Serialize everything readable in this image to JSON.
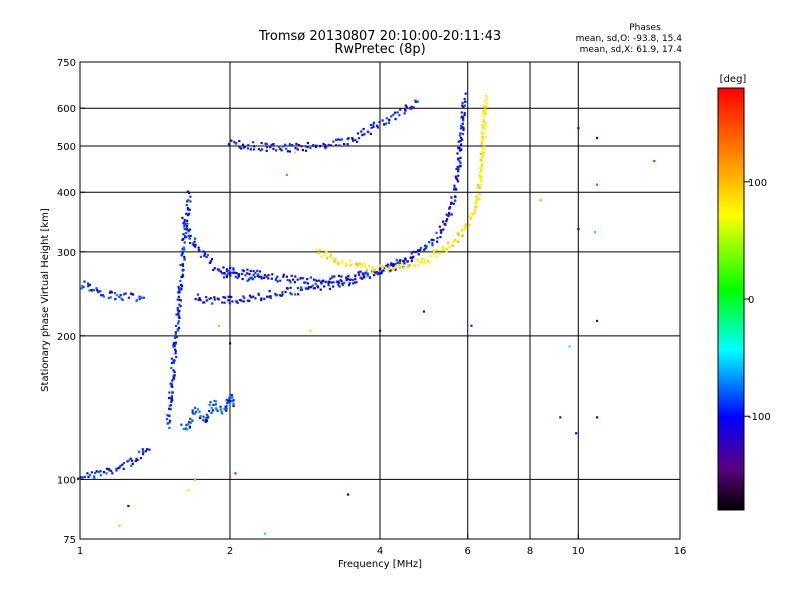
{
  "header": {
    "title": "Tromsø 20130807 20:10:00-20:11:43",
    "subtitle": "RwPretec (8p)"
  },
  "stats": {
    "heading": "Phases",
    "line_o": "mean, sd,O: -93.8, 15.4",
    "line_x": "mean, sd,X: 61.9, 17.4"
  },
  "colorbar": {
    "unit": "[deg]",
    "ticks": [
      {
        "value": 100,
        "label": "100"
      },
      {
        "value": 0,
        "label": "0"
      },
      {
        "value": -100,
        "label": "-100"
      }
    ],
    "range": [
      -180,
      180
    ]
  },
  "chart_data": {
    "type": "scatter",
    "xlabel": "Frequency [MHz]",
    "ylabel": "Stationary phase Virtual Height [km]",
    "x_scale": "log",
    "y_scale": "log",
    "xlim": [
      1,
      16
    ],
    "ylim": [
      75,
      750
    ],
    "grid": true,
    "x_ticks": [
      1,
      2,
      4,
      6,
      8,
      10,
      16
    ],
    "y_ticks": [
      75,
      100,
      200,
      300,
      400,
      500,
      600,
      750
    ],
    "x_grid": [
      2,
      4,
      6,
      8,
      10
    ],
    "y_grid": [
      100,
      200,
      300,
      400,
      500,
      600
    ],
    "colormap": "rainbow",
    "segments": [
      {
        "id": "E-low",
        "phase": -95,
        "points": [
          [
            1.0,
            102
          ],
          [
            1.05,
            102
          ],
          [
            1.1,
            103
          ],
          [
            1.15,
            104
          ],
          [
            1.2,
            106
          ],
          [
            1.25,
            108
          ],
          [
            1.3,
            111
          ],
          [
            1.35,
            115
          ],
          [
            1.38,
            118
          ]
        ]
      },
      {
        "id": "E-upper",
        "phase": -90,
        "points": [
          [
            1.0,
            255
          ],
          [
            1.03,
            258
          ],
          [
            1.06,
            251
          ],
          [
            1.1,
            246
          ],
          [
            1.15,
            243
          ],
          [
            1.2,
            243
          ],
          [
            1.25,
            241
          ],
          [
            1.3,
            240
          ],
          [
            1.35,
            242
          ]
        ]
      },
      {
        "id": "F-rise",
        "phase": -95,
        "points": [
          [
            1.5,
            130
          ],
          [
            1.52,
            150
          ],
          [
            1.54,
            175
          ],
          [
            1.56,
            200
          ],
          [
            1.58,
            235
          ],
          [
            1.6,
            275
          ],
          [
            1.62,
            320
          ],
          [
            1.64,
            360
          ],
          [
            1.66,
            400
          ]
        ]
      },
      {
        "id": "F-cluster",
        "phase": -98,
        "points": [
          [
            1.6,
            350
          ],
          [
            1.65,
            330
          ],
          [
            1.7,
            310
          ],
          [
            1.75,
            300
          ],
          [
            1.8,
            290
          ],
          [
            1.85,
            280
          ],
          [
            1.9,
            275
          ],
          [
            1.95,
            270
          ],
          [
            2.0,
            268
          ],
          [
            2.1,
            265
          ],
          [
            2.2,
            265
          ],
          [
            2.3,
            262
          ]
        ]
      },
      {
        "id": "F-O-trace",
        "phase": -100,
        "points": [
          [
            1.7,
            240
          ],
          [
            1.9,
            237
          ],
          [
            2.1,
            238
          ],
          [
            2.4,
            244
          ],
          [
            2.8,
            250
          ],
          [
            3.2,
            256
          ],
          [
            3.6,
            263
          ],
          [
            4.0,
            273
          ],
          [
            4.4,
            285
          ],
          [
            4.8,
            300
          ],
          [
            5.2,
            322
          ],
          [
            5.5,
            355
          ],
          [
            5.65,
            400
          ],
          [
            5.75,
            460
          ],
          [
            5.82,
            530
          ],
          [
            5.88,
            600
          ],
          [
            5.9,
            640
          ]
        ]
      },
      {
        "id": "F-O-upper",
        "phase": -100,
        "points": [
          [
            1.9,
            275
          ],
          [
            2.3,
            268
          ],
          [
            2.7,
            262
          ],
          [
            3.1,
            262
          ],
          [
            3.5,
            266
          ],
          [
            3.9,
            271
          ],
          [
            4.3,
            280
          ],
          [
            4.7,
            290
          ]
        ]
      },
      {
        "id": "F-X-trace",
        "phase": 80,
        "points": [
          [
            3.0,
            300
          ],
          [
            3.3,
            288
          ],
          [
            3.6,
            280
          ],
          [
            3.9,
            276
          ],
          [
            4.2,
            276
          ],
          [
            4.6,
            280
          ],
          [
            5.0,
            290
          ],
          [
            5.4,
            305
          ],
          [
            5.8,
            325
          ],
          [
            6.1,
            355
          ],
          [
            6.3,
            400
          ],
          [
            6.4,
            450
          ],
          [
            6.45,
            520
          ],
          [
            6.5,
            600
          ],
          [
            6.52,
            640
          ]
        ]
      },
      {
        "id": "F2-echo",
        "phase": -100,
        "points": [
          [
            2.0,
            505
          ],
          [
            2.2,
            500
          ],
          [
            2.5,
            495
          ],
          [
            2.8,
            497
          ],
          [
            3.1,
            502
          ],
          [
            3.4,
            510
          ],
          [
            3.6,
            520
          ],
          [
            3.8,
            540
          ],
          [
            4.1,
            565
          ],
          [
            4.5,
            595
          ],
          [
            4.8,
            615
          ]
        ]
      },
      {
        "id": "Es-patch",
        "phase": -85,
        "points": [
          [
            1.6,
            130
          ],
          [
            1.65,
            128
          ],
          [
            1.7,
            140
          ],
          [
            1.75,
            135
          ],
          [
            1.8,
            132
          ],
          [
            1.85,
            145
          ],
          [
            1.9,
            140
          ],
          [
            1.95,
            138
          ],
          [
            2.0,
            150
          ],
          [
            2.05,
            142
          ]
        ]
      }
    ],
    "isolated_points": [
      {
        "x": 1.25,
        "y": 88,
        "phase": -110
      },
      {
        "x": 1.2,
        "y": 80,
        "phase": 100
      },
      {
        "x": 1.65,
        "y": 95,
        "phase": 80
      },
      {
        "x": 1.7,
        "y": 100,
        "phase": 20
      },
      {
        "x": 2.05,
        "y": 103,
        "phase": 170
      },
      {
        "x": 2.35,
        "y": 77,
        "phase": -30
      },
      {
        "x": 3.45,
        "y": 93,
        "phase": -100
      },
      {
        "x": 2.0,
        "y": 193,
        "phase": -160
      },
      {
        "x": 1.9,
        "y": 210,
        "phase": 100
      },
      {
        "x": 2.9,
        "y": 205,
        "phase": 60
      },
      {
        "x": 4.9,
        "y": 225,
        "phase": -130
      },
      {
        "x": 6.1,
        "y": 210,
        "phase": -90
      },
      {
        "x": 8.4,
        "y": 385,
        "phase": 110
      },
      {
        "x": 9.2,
        "y": 135,
        "phase": -140
      },
      {
        "x": 9.6,
        "y": 190,
        "phase": -30
      },
      {
        "x": 9.9,
        "y": 125,
        "phase": -100
      },
      {
        "x": 10.0,
        "y": 335,
        "phase": -100
      },
      {
        "x": 10.0,
        "y": 545,
        "phase": -110
      },
      {
        "x": 10.9,
        "y": 135,
        "phase": -100
      },
      {
        "x": 10.9,
        "y": 215,
        "phase": -130
      },
      {
        "x": 10.8,
        "y": 330,
        "phase": -10
      },
      {
        "x": 10.9,
        "y": 415,
        "phase": 150
      },
      {
        "x": 10.9,
        "y": 520,
        "phase": -100
      },
      {
        "x": 14.2,
        "y": 465,
        "phase": 160
      },
      {
        "x": 2.7,
        "y": 485,
        "phase": 90
      },
      {
        "x": 2.6,
        "y": 435,
        "phase": 130
      },
      {
        "x": 4.0,
        "y": 205,
        "phase": -120
      }
    ]
  }
}
